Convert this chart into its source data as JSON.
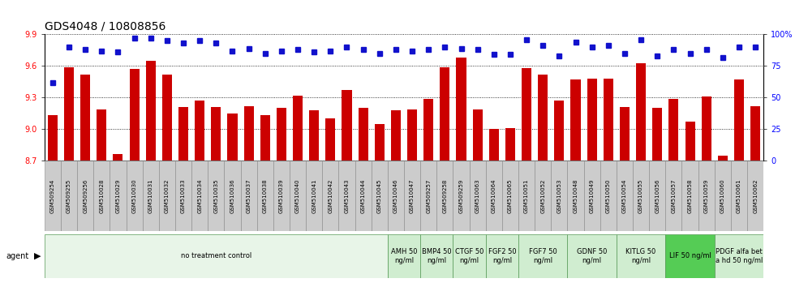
{
  "title": "GDS4048 / 10808856",
  "samples": [
    "GSM509254",
    "GSM509255",
    "GSM509256",
    "GSM510028",
    "GSM510029",
    "GSM510030",
    "GSM510031",
    "GSM510032",
    "GSM510033",
    "GSM510034",
    "GSM510035",
    "GSM510036",
    "GSM510037",
    "GSM510038",
    "GSM510039",
    "GSM510040",
    "GSM510041",
    "GSM510042",
    "GSM510043",
    "GSM510044",
    "GSM510045",
    "GSM510046",
    "GSM510047",
    "GSM509257",
    "GSM509258",
    "GSM509259",
    "GSM510063",
    "GSM510064",
    "GSM510065",
    "GSM510051",
    "GSM510052",
    "GSM510053",
    "GSM510048",
    "GSM510049",
    "GSM510050",
    "GSM510054",
    "GSM510055",
    "GSM510056",
    "GSM510057",
    "GSM510058",
    "GSM510059",
    "GSM510060",
    "GSM510061",
    "GSM510062"
  ],
  "bar_values": [
    9.13,
    9.59,
    9.52,
    9.19,
    8.76,
    9.57,
    9.65,
    9.52,
    9.21,
    9.27,
    9.21,
    9.15,
    9.22,
    9.13,
    9.2,
    9.32,
    9.18,
    9.1,
    9.37,
    9.2,
    9.05,
    9.18,
    9.19,
    9.29,
    9.59,
    9.68,
    9.19,
    9.0,
    9.01,
    9.58,
    9.52,
    9.27,
    9.47,
    9.48,
    9.48,
    9.21,
    9.63,
    9.2,
    9.29,
    9.07,
    9.31,
    8.75,
    9.47,
    9.22
  ],
  "dot_values": [
    62,
    90,
    88,
    87,
    86,
    97,
    97,
    95,
    93,
    95,
    93,
    87,
    89,
    85,
    87,
    88,
    86,
    87,
    90,
    88,
    85,
    88,
    87,
    88,
    90,
    89,
    88,
    84,
    84,
    96,
    91,
    83,
    94,
    90,
    91,
    85,
    96,
    83,
    88,
    85,
    88,
    82,
    90,
    90
  ],
  "ylim_left": [
    8.7,
    9.9
  ],
  "ylim_right": [
    0,
    100
  ],
  "yticks_left": [
    8.7,
    9.0,
    9.3,
    9.6,
    9.9
  ],
  "yticks_right": [
    0,
    25,
    50,
    75,
    100
  ],
  "bar_color": "#cc0000",
  "dot_color": "#1111cc",
  "agents": [
    {
      "label": "no treatment control",
      "start": 0,
      "end": 21,
      "color": "#e8f5e8"
    },
    {
      "label": "AMH 50\nng/ml",
      "start": 21,
      "end": 23,
      "color": "#d0edd0"
    },
    {
      "label": "BMP4 50\nng/ml",
      "start": 23,
      "end": 25,
      "color": "#d0edd0"
    },
    {
      "label": "CTGF 50\nng/ml",
      "start": 25,
      "end": 27,
      "color": "#d0edd0"
    },
    {
      "label": "FGF2 50\nng/ml",
      "start": 27,
      "end": 29,
      "color": "#d0edd0"
    },
    {
      "label": "FGF7 50\nng/ml",
      "start": 29,
      "end": 32,
      "color": "#d0edd0"
    },
    {
      "label": "GDNF 50\nng/ml",
      "start": 32,
      "end": 35,
      "color": "#d0edd0"
    },
    {
      "label": "KITLG 50\nng/ml",
      "start": 35,
      "end": 38,
      "color": "#d0edd0"
    },
    {
      "label": "LIF 50 ng/ml",
      "start": 38,
      "end": 41,
      "color": "#55cc55"
    },
    {
      "label": "PDGF alfa bet\na hd 50 ng/ml",
      "start": 41,
      "end": 44,
      "color": "#d0edd0"
    }
  ],
  "title_fontsize": 10,
  "tick_fontsize": 7,
  "sample_fontsize": 5,
  "agent_fontsize": 6
}
